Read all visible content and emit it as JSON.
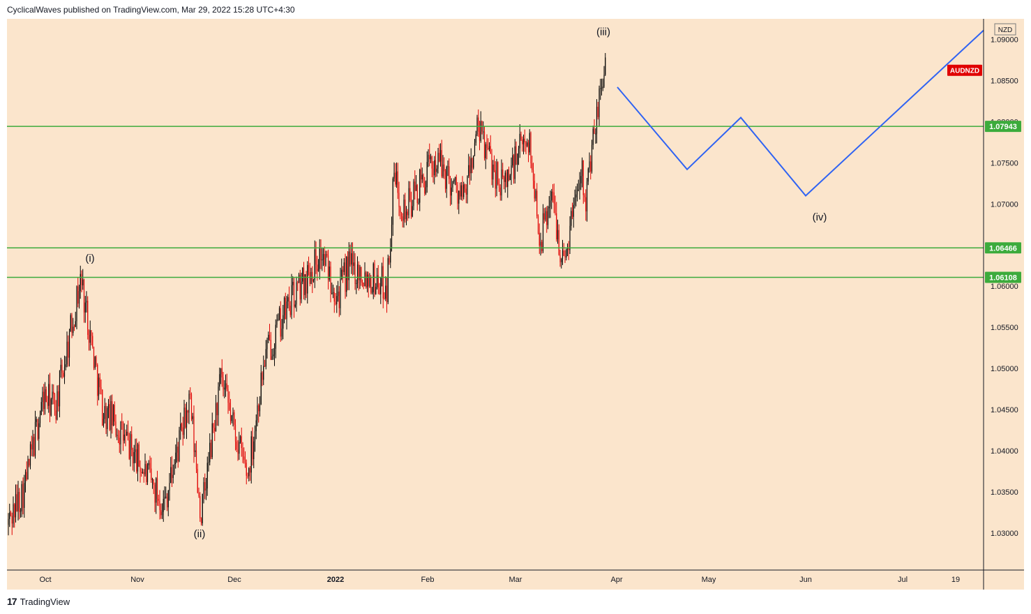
{
  "header": {
    "publisher_line": "CyclicalWaves published on TradingView.com, Mar 29, 2022 15:28 UTC+4:30"
  },
  "footer": {
    "brand": "TradingView",
    "logo_glyph": "17"
  },
  "chart_data": {
    "type": "candlestick",
    "symbol": "AUDNZD",
    "currency": "NZD",
    "background": "#fbe5cc",
    "colors": {
      "up": "#000000",
      "down": "#e00000",
      "projection": "#2f63f3",
      "level": "#3cab3c",
      "symbol_badge": "#e00000"
    },
    "ylim": [
      1.0255,
      1.0925
    ],
    "y_ticks": [
      "1.09000",
      "1.08500",
      "1.08000",
      "1.07500",
      "1.07000",
      "1.06500",
      "1.06000",
      "1.05500",
      "1.05000",
      "1.04500",
      "1.04000",
      "1.03500",
      "1.03000"
    ],
    "x_ticks": [
      {
        "label": "Oct",
        "bold": false
      },
      {
        "label": "Nov",
        "bold": false
      },
      {
        "label": "Dec",
        "bold": false
      },
      {
        "label": "2022",
        "bold": true
      },
      {
        "label": "Feb",
        "bold": false
      },
      {
        "label": "Mar",
        "bold": false
      },
      {
        "label": "Apr",
        "bold": false
      },
      {
        "label": "May",
        "bold": false
      },
      {
        "label": "Jun",
        "bold": false
      },
      {
        "label": "Jul",
        "bold": false
      },
      {
        "label": "19",
        "bold": false
      }
    ],
    "price_path": [
      1.031,
      1.0355,
      1.0465,
      1.0455,
      1.061,
      1.0445,
      1.044,
      1.0335,
      1.046,
      1.032,
      1.0485,
      1.037,
      1.0515,
      1.058,
      1.064,
      1.059,
      1.0625,
      1.06,
      1.0735,
      1.069,
      1.0755,
      1.0705,
      1.079,
      1.072,
      1.0785,
      1.0655,
      1.0715,
      1.0625,
      1.075,
      1.071,
      1.088
    ],
    "levels": [
      {
        "value": 1.07943,
        "label": "1.07943"
      },
      {
        "value": 1.06466,
        "label": "1.06466"
      },
      {
        "value": 1.06108,
        "label": "1.06108"
      }
    ],
    "symbol_badge_value": 1.08625,
    "projection": [
      1.0842,
      1.0742,
      1.0805,
      1.071,
      1.0911
    ],
    "annotations": [
      {
        "text": "(i)",
        "value": 1.063
      },
      {
        "text": "(ii)",
        "value": 1.0295
      },
      {
        "text": "(iii)",
        "value": 1.0905
      },
      {
        "text": "(iv)",
        "value": 1.068
      }
    ]
  }
}
